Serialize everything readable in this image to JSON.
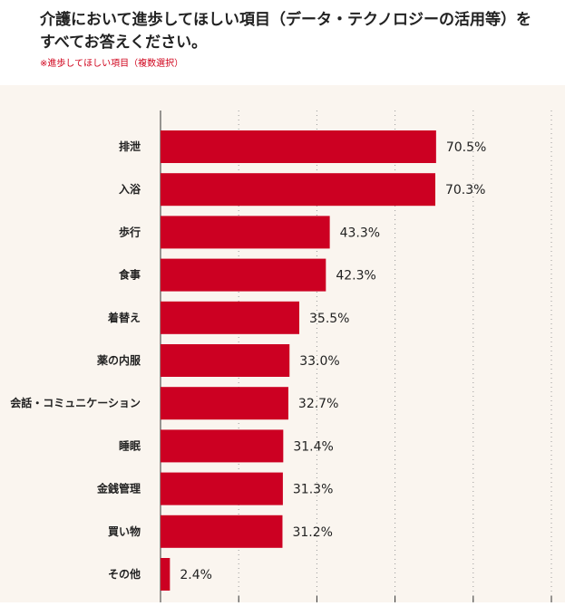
{
  "header": {
    "title_line1": "介護において進歩してほしい項目（データ・テクノロジーの活用等）を",
    "title_line2": "すべてお答えください。",
    "note": "※進歩してほしい項目（複数選択）"
  },
  "colors": {
    "bar": "#cc0022",
    "panel_background": "#faf5ef",
    "note_text": "#d0021b",
    "gridline": "#999999"
  },
  "chart_data": {
    "type": "bar",
    "orientation": "horizontal",
    "categories": [
      "排泄",
      "入浴",
      "歩行",
      "食事",
      "着替え",
      "薬の内服",
      "会話・コミュニケーション",
      "睡眠",
      "金銭管理",
      "買い物",
      "その他"
    ],
    "values": [
      70.5,
      70.3,
      43.3,
      42.3,
      35.5,
      33.0,
      32.7,
      31.4,
      31.3,
      31.2,
      2.4
    ],
    "value_labels": [
      "70.5%",
      "70.3%",
      "43.3%",
      "42.3%",
      "35.5%",
      "33.0%",
      "32.7%",
      "31.4%",
      "31.3%",
      "31.2%",
      "2.4%"
    ],
    "xlim": [
      0,
      100
    ],
    "grid": true
  }
}
